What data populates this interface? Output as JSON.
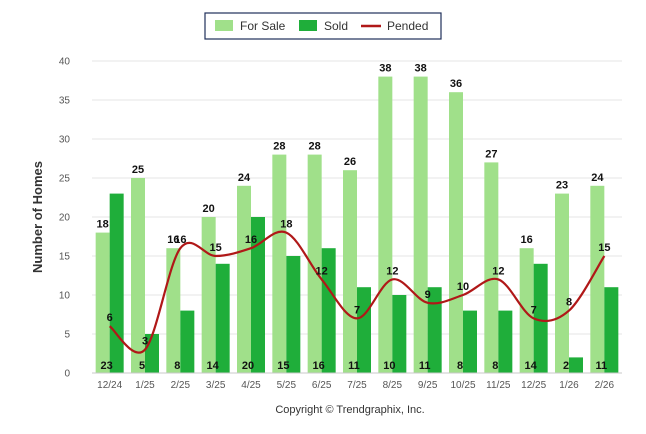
{
  "chart_data": {
    "type": "bar",
    "categories": [
      "12/24",
      "1/25",
      "2/25",
      "3/25",
      "4/25",
      "5/25",
      "6/25",
      "7/25",
      "8/25",
      "9/25",
      "10/25",
      "11/25",
      "12/25",
      "1/26",
      "2/26"
    ],
    "series": [
      {
        "name": "For Sale",
        "type": "bar",
        "color": "#a0e08a",
        "values": [
          18,
          25,
          16,
          20,
          24,
          28,
          28,
          26,
          38,
          38,
          36,
          27,
          16,
          23,
          24
        ]
      },
      {
        "name": "Sold",
        "type": "bar",
        "color": "#1fae3a",
        "values": [
          23,
          5,
          8,
          14,
          20,
          15,
          16,
          11,
          10,
          11,
          8,
          8,
          14,
          2,
          11
        ]
      },
      {
        "name": "Pended",
        "type": "line",
        "color": "#b01818",
        "values": [
          6,
          3,
          16,
          15,
          16,
          18,
          12,
          7,
          12,
          9,
          10,
          12,
          7,
          8,
          15
        ]
      }
    ],
    "ylabel": "Number of Homes",
    "xlabel": "",
    "ylim": [
      0,
      40
    ],
    "yticks": [
      0,
      5,
      10,
      15,
      20,
      25,
      30,
      35,
      40
    ],
    "grid": true,
    "legend_position": "top-center",
    "footer": "Copyright © Trendgraphix, Inc."
  }
}
